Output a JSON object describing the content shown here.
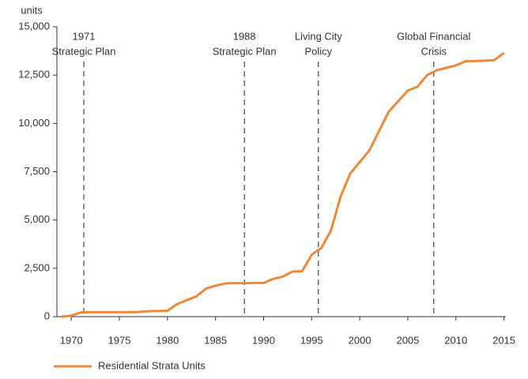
{
  "chart_data": {
    "type": "line",
    "y_label": "units",
    "x": [
      1969,
      1970,
      1971,
      1972,
      1973,
      1974,
      1975,
      1976,
      1977,
      1978,
      1979,
      1980,
      1981,
      1982,
      1983,
      1984,
      1985,
      1986,
      1987,
      1988,
      1989,
      1990,
      1991,
      1992,
      1993,
      1994,
      1995,
      1996,
      1997,
      1998,
      1999,
      2000,
      2001,
      2002,
      2003,
      2004,
      2005,
      2006,
      2007,
      2008,
      2009,
      2010,
      2011,
      2012,
      2013,
      2014,
      2015
    ],
    "series": [
      {
        "name": "Residential Strata Units",
        "color": "#f0883a",
        "values": [
          0,
          50,
          220,
          230,
          230,
          230,
          230,
          230,
          240,
          280,
          290,
          300,
          650,
          850,
          1050,
          1450,
          1600,
          1720,
          1730,
          1730,
          1740,
          1740,
          1950,
          2070,
          2330,
          2350,
          3200,
          3550,
          4450,
          6200,
          7400,
          8000,
          8600,
          9600,
          10600,
          11150,
          11700,
          11900,
          12500,
          12750,
          12880,
          13000,
          13220,
          13230,
          13250,
          13280,
          13650
        ]
      }
    ],
    "xlim": [
      1968.5,
      2015.2
    ],
    "xticks": [
      1970,
      1975,
      1980,
      1985,
      1990,
      1995,
      2000,
      2005,
      2010,
      2015
    ],
    "ylim": [
      0,
      15000
    ],
    "yticks": [
      0,
      {
        "value": 2500,
        "label": "2,500"
      },
      {
        "value": 5000,
        "label": "5,000"
      },
      {
        "value": 7500,
        "label": "7,500"
      },
      {
        "value": 10000,
        "label": "10,000"
      },
      {
        "value": 12500,
        "label": "12,500"
      },
      {
        "value": 15000,
        "label": "15,000"
      }
    ],
    "annotations": [
      {
        "x": 1971.3,
        "text": [
          "1971",
          "Strategic Plan"
        ]
      },
      {
        "x": 1988,
        "text": [
          "1988",
          "Strategic Plan"
        ]
      },
      {
        "x": 1995.7,
        "text": [
          "Living City",
          "Policy"
        ]
      },
      {
        "x": 2007.7,
        "text": [
          "Global Financial",
          "Crisis"
        ]
      }
    ],
    "legend": "bottom-left"
  }
}
